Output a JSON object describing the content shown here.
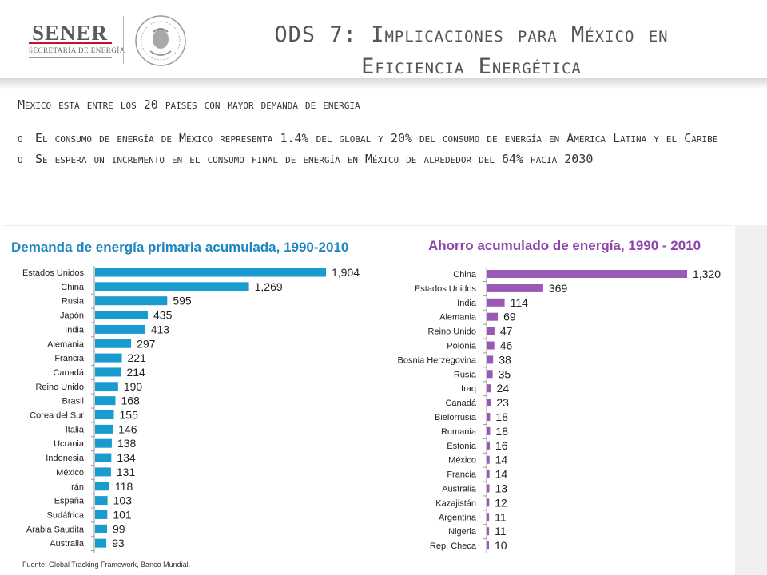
{
  "header": {
    "logo_name": "SENER",
    "logo_sub": "SECRETARÍA DE ENERGÍA",
    "title_line1": "ODS 7: Implicaciones para México en",
    "title_line2": "Eficiencia Energética"
  },
  "content": {
    "subtitle": "México está entre los 20 países con mayor demanda de energía",
    "bullets": [
      {
        "mark": "o",
        "text": "El consumo de energía de México representa 1.4% del global y  20% del consumo de energía en América Latina y el Caribe"
      },
      {
        "mark": "o",
        "text": "Se espera un incremento en el consumo final de energía en México de alrededor del 64% hacia 2030"
      }
    ]
  },
  "chart_data": [
    {
      "type": "bar",
      "orientation": "horizontal",
      "title": "Demanda de energía primaria acumulada, 1990-2010",
      "color": "#1a9bd0",
      "categories": [
        "Estados Unidos",
        "China",
        "Rusia",
        "Japón",
        "India",
        "Alemania",
        "Francia",
        "Canadá",
        "Reino Unido",
        "Brasil",
        "Corea del Sur",
        "Italia",
        "Ucrania",
        "Indonesia",
        "México",
        "Irán",
        "España",
        "Sudáfrica",
        "Arabia Saudita",
        "Australia"
      ],
      "values": [
        1904,
        1269,
        595,
        435,
        413,
        297,
        221,
        214,
        190,
        168,
        155,
        146,
        138,
        134,
        131,
        118,
        103,
        101,
        99,
        93
      ],
      "value_labels": [
        "1,904",
        "1,269",
        "595",
        "435",
        "413",
        "297",
        "221",
        "214",
        "190",
        "168",
        "155",
        "146",
        "138",
        "134",
        "131",
        "118",
        "103",
        "101",
        "99",
        "93"
      ]
    },
    {
      "type": "bar",
      "orientation": "horizontal",
      "title": "Ahorro acumulado de energía, 1990 - 2010",
      "color": "#9b59b6",
      "categories": [
        "China",
        "Estados Unidos",
        "India",
        "Alemania",
        "Reino Unido",
        "Polonia",
        "Bosnia Herzegovina",
        "Rusia",
        "Iraq",
        "Canadá",
        "Bielorrusia",
        "Rumania",
        "Estonia",
        "México",
        "Francia",
        "Australia",
        "Kazajistán",
        "Argentina",
        "Nigeria",
        "Rep. Checa"
      ],
      "values": [
        1320,
        369,
        114,
        69,
        47,
        46,
        38,
        35,
        24,
        23,
        18,
        18,
        16,
        14,
        14,
        13,
        12,
        11,
        11,
        10
      ],
      "value_labels": [
        "1,320",
        "369",
        "114",
        "69",
        "47",
        "46",
        "38",
        "35",
        "24",
        "23",
        "18",
        "18",
        "16",
        "14",
        "14",
        "13",
        "12",
        "11",
        "11",
        "10"
      ]
    }
  ],
  "source": "Fuente: Global Tracking Framework, Banco Mundial.",
  "seal_icon": "mexico-coat-of-arms-seal-icon"
}
